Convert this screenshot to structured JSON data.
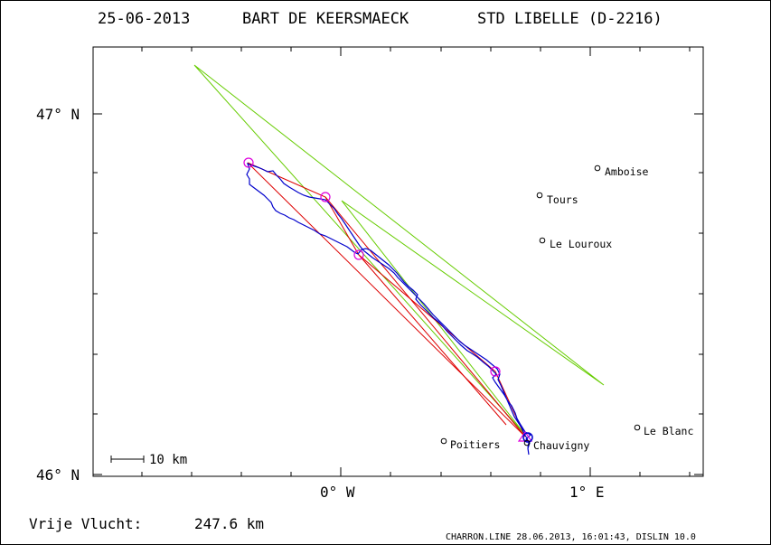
{
  "header": {
    "date": "25-06-2013",
    "pilot": "BART DE KEERSMAECK",
    "glider": "STD LIBELLE (D-2216)"
  },
  "axes": {
    "lat_top_label": "47° N",
    "lat_bottom_label": "46° N",
    "lon_left_label": "0° W",
    "lon_right_label": "1° E"
  },
  "scale_bar": {
    "label": "10 km"
  },
  "cities": [
    {
      "name": "Amboise",
      "lon": 1.03,
      "lat": 46.85
    },
    {
      "name": "Tours",
      "lon": 0.79,
      "lat": 46.77
    },
    {
      "name": "Le Louroux",
      "lon": 0.8,
      "lat": 46.65
    },
    {
      "name": "Le Blanc",
      "lon": 1.2,
      "lat": 46.13
    },
    {
      "name": "Poitiers",
      "lon": 0.42,
      "lat": 46.09
    },
    {
      "name": "Chauvigny",
      "lon": 0.74,
      "lat": 46.07
    }
  ],
  "footer": {
    "distance_label": "Vrije Vlucht:",
    "distance_value": "247.6 km",
    "credit": "CHARRON.LINE 28.06.2013, 16:01:43, DISLIN 10.0"
  },
  "colors": {
    "track": "#0000cc",
    "task": "#dd0000",
    "turnpoint": "#dd00dd",
    "sector": "#66cc00",
    "axis": "#000000"
  }
}
